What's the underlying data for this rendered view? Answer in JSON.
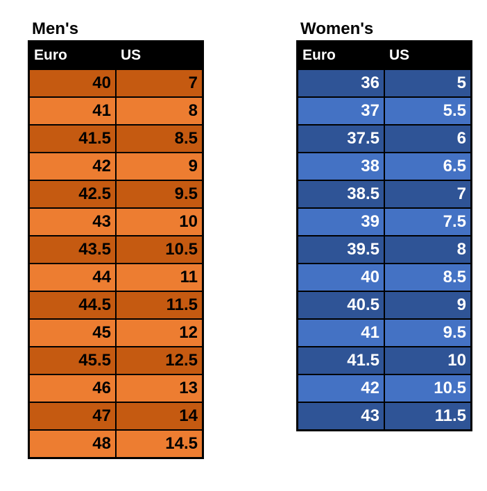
{
  "page": {
    "background": "#ffffff"
  },
  "tables": [
    {
      "id": "mens",
      "title": "Men's",
      "headers": [
        "Euro",
        "US"
      ],
      "rows": [
        [
          "40",
          "7"
        ],
        [
          "41",
          "8"
        ],
        [
          "41.5",
          "8.5"
        ],
        [
          "42",
          "9"
        ],
        [
          "42.5",
          "9.5"
        ],
        [
          "43",
          "10"
        ],
        [
          "43.5",
          "10.5"
        ],
        [
          "44",
          "11"
        ],
        [
          "44.5",
          "11.5"
        ],
        [
          "45",
          "12"
        ],
        [
          "45.5",
          "12.5"
        ],
        [
          "46",
          "13"
        ],
        [
          "47",
          "14"
        ],
        [
          "48",
          "14.5"
        ]
      ],
      "colors": {
        "header_bg": "#000000",
        "header_text": "#ffffff",
        "row_dark": "#C55A11",
        "row_light": "#ED7D31",
        "cell_text": "#000000",
        "border": "#000000",
        "title_text": "#000000"
      }
    },
    {
      "id": "womens",
      "title": "Women's",
      "headers": [
        "Euro",
        "US"
      ],
      "rows": [
        [
          "36",
          "5"
        ],
        [
          "37",
          "5.5"
        ],
        [
          "37.5",
          "6"
        ],
        [
          "38",
          "6.5"
        ],
        [
          "38.5",
          "7"
        ],
        [
          "39",
          "7.5"
        ],
        [
          "39.5",
          "8"
        ],
        [
          "40",
          "8.5"
        ],
        [
          "40.5",
          "9"
        ],
        [
          "41",
          "9.5"
        ],
        [
          "41.5",
          "10"
        ],
        [
          "42",
          "10.5"
        ],
        [
          "43",
          "11.5"
        ]
      ],
      "colors": {
        "header_bg": "#000000",
        "header_text": "#ffffff",
        "row_dark": "#2F5496",
        "row_light": "#4472C4",
        "cell_text": "#ffffff",
        "border": "#000000",
        "title_text": "#000000"
      }
    }
  ]
}
